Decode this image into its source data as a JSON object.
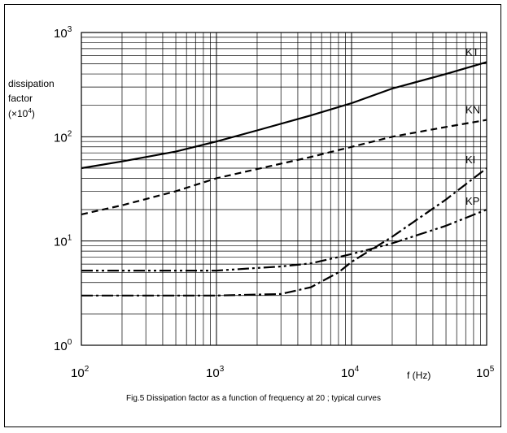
{
  "chart_data": {
    "type": "line",
    "title": "",
    "ylabel": [
      "dissipation",
      "factor",
      "(×10",
      "4",
      ")"
    ],
    "xlabel": "f (Hz)",
    "x_scale": "log",
    "y_scale": "log",
    "xlim": [
      100,
      100000
    ],
    "ylim": [
      1,
      1000
    ],
    "grid": true,
    "x_ticks": [
      {
        "base": "10",
        "exp": "2"
      },
      {
        "base": "10",
        "exp": "3"
      },
      {
        "base": "10",
        "exp": "4"
      },
      {
        "base": "10",
        "exp": "5"
      }
    ],
    "y_ticks": [
      {
        "base": "10",
        "exp": "0"
      },
      {
        "base": "10",
        "exp": "1"
      },
      {
        "base": "10",
        "exp": "2"
      },
      {
        "base": "10",
        "exp": "3"
      }
    ],
    "series": [
      {
        "name": "KT",
        "style": "solid",
        "points": [
          [
            100,
            50
          ],
          [
            200,
            58
          ],
          [
            500,
            72
          ],
          [
            1000,
            90
          ],
          [
            2000,
            115
          ],
          [
            5000,
            160
          ],
          [
            10000,
            210
          ],
          [
            20000,
            290
          ],
          [
            50000,
            400
          ],
          [
            100000,
            520
          ]
        ]
      },
      {
        "name": "KN",
        "style": "dashed",
        "points": [
          [
            100,
            18
          ],
          [
            200,
            22
          ],
          [
            500,
            30
          ],
          [
            1000,
            40
          ],
          [
            2000,
            49
          ],
          [
            5000,
            64
          ],
          [
            10000,
            80
          ],
          [
            20000,
            100
          ],
          [
            50000,
            124
          ],
          [
            100000,
            145
          ]
        ]
      },
      {
        "name": "KI",
        "style": "dashdot",
        "points": [
          [
            100,
            3
          ],
          [
            1000,
            3
          ],
          [
            3000,
            3.1
          ],
          [
            5000,
            3.6
          ],
          [
            8000,
            5
          ],
          [
            10000,
            6.3
          ],
          [
            20000,
            11
          ],
          [
            50000,
            25
          ],
          [
            100000,
            50
          ]
        ]
      },
      {
        "name": "KP",
        "style": "dashdotdot",
        "points": [
          [
            100,
            5.2
          ],
          [
            1000,
            5.2
          ],
          [
            3000,
            5.7
          ],
          [
            5000,
            6.1
          ],
          [
            10000,
            7.5
          ],
          [
            20000,
            9.5
          ],
          [
            50000,
            14
          ],
          [
            100000,
            20
          ]
        ]
      }
    ]
  },
  "caption": "Fig.5 Dissipation factor as a function of frequency at 20   ; typical curves"
}
